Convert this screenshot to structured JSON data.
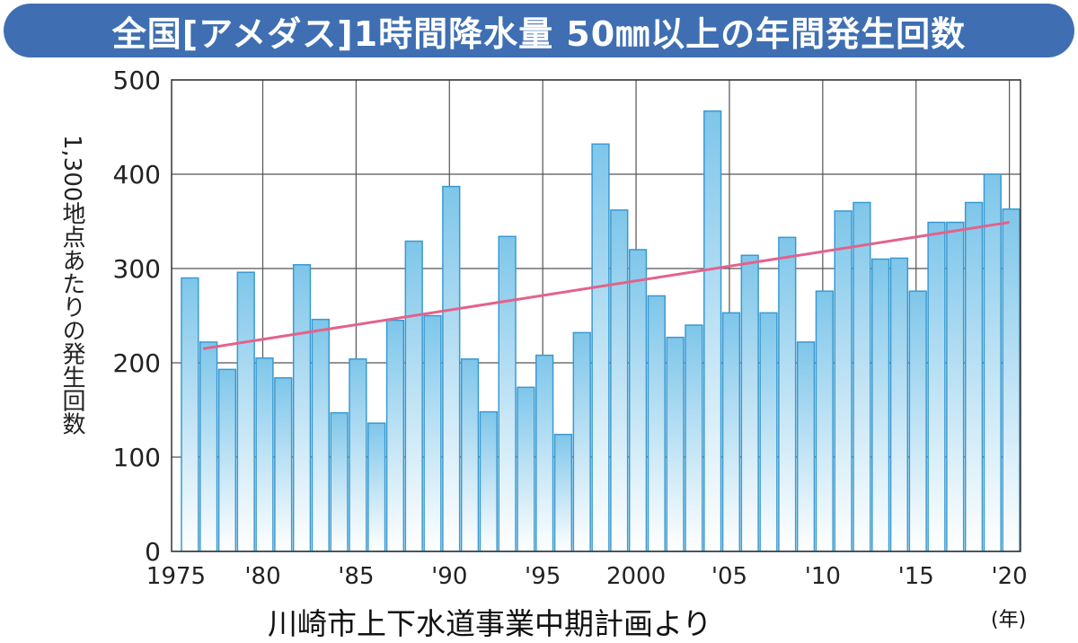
{
  "title": "全国[アメダス]1時間降水量 50㎜以上の年間発生回数",
  "source_note": "川崎市上下水道事業中期計画より",
  "colors": {
    "title_bg": "#3f6fb2",
    "bar_top": "#7ec6ea",
    "bar_bottom": "#ffffff",
    "bar_stroke": "#3a9ad0",
    "trend": "#e3628a",
    "grid": "#555555"
  },
  "chart_data": {
    "type": "bar",
    "title": "全国[アメダス]1時間降水量 50㎜以上の年間発生回数",
    "ylabel": "1,300地点あたりの発生回数",
    "xlabel": "",
    "x_unit": "(年)",
    "ylim": [
      0,
      500
    ],
    "y_ticks": [
      0,
      100,
      200,
      300,
      400,
      500
    ],
    "x_tick_labels": [
      "1975",
      "'80",
      "'85",
      "'90",
      "'95",
      "2000",
      "'05",
      "'10",
      "'15",
      "'20"
    ],
    "categories": [
      1976,
      1977,
      1978,
      1979,
      1980,
      1981,
      1982,
      1983,
      1984,
      1985,
      1986,
      1987,
      1988,
      1989,
      1990,
      1991,
      1992,
      1993,
      1994,
      1995,
      1996,
      1997,
      1998,
      1999,
      2000,
      2001,
      2002,
      2003,
      2004,
      2005,
      2006,
      2007,
      2008,
      2009,
      2010,
      2011,
      2012,
      2013,
      2014,
      2015,
      2016,
      2017,
      2018,
      2019,
      2020
    ],
    "values": [
      290,
      222,
      193,
      296,
      205,
      184,
      304,
      246,
      147,
      204,
      136,
      245,
      329,
      250,
      387,
      204,
      148,
      334,
      174,
      208,
      124,
      232,
      432,
      362,
      320,
      271,
      227,
      240,
      467,
      253,
      314,
      253,
      333,
      222,
      276,
      361,
      370,
      310,
      311,
      276,
      349,
      349,
      370,
      400,
      363
    ],
    "trend_line": {
      "start": [
        1977,
        215
      ],
      "end": [
        2020,
        349
      ]
    },
    "grid": true
  }
}
